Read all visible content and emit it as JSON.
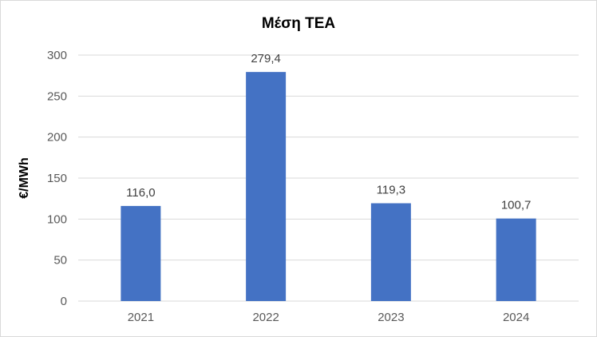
{
  "chart_data": {
    "type": "bar",
    "title": "Μέση ΤΕΑ",
    "xlabel": "",
    "ylabel": "€/MWh",
    "categories": [
      "2021",
      "2022",
      "2023",
      "2024"
    ],
    "values": [
      116.0,
      279.4,
      119.3,
      100.7
    ],
    "data_labels": [
      "116,0",
      "279,4",
      "119,3",
      "100,7"
    ],
    "ylim": [
      0,
      300
    ],
    "yticks": [
      0,
      50,
      100,
      150,
      200,
      250,
      300
    ],
    "grid": true,
    "legend": "none",
    "bar_color": "#4472C4"
  }
}
